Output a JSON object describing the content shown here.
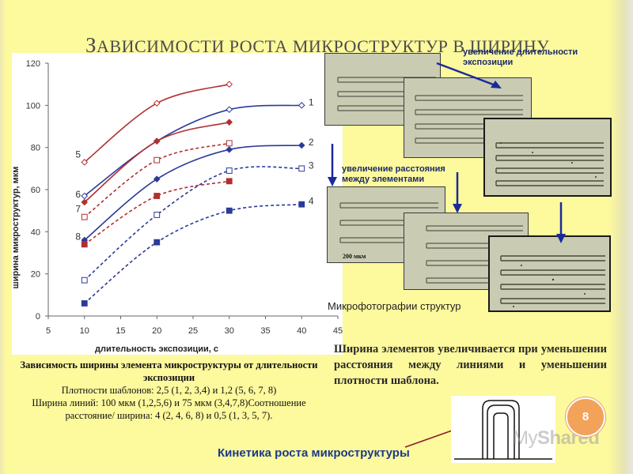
{
  "slide": {
    "title_cap": "З",
    "title_rest": "АВИСИМОСТИ РОСТА МИКРОСТРУКТУР В ШИРИНУ",
    "page_number": "8"
  },
  "chart_data": {
    "type": "line",
    "title": "",
    "xlabel": "длительность экспозиции, с",
    "ylabel": "ширина микроструктур, мкм",
    "xlim": [
      5,
      45
    ],
    "ylim": [
      0,
      120
    ],
    "xticks": [
      5,
      10,
      15,
      20,
      25,
      30,
      35,
      40,
      45
    ],
    "yticks": [
      0,
      20,
      40,
      60,
      80,
      100,
      120
    ],
    "grid": false,
    "series": [
      {
        "name": "1",
        "color": "#2b3a9a",
        "dash": false,
        "marker": "diamond-open",
        "x": [
          10,
          20,
          30,
          40
        ],
        "y": [
          57,
          83,
          98,
          100
        ]
      },
      {
        "name": "2",
        "color": "#2b3a9a",
        "dash": false,
        "marker": "diamond-filled",
        "x": [
          10,
          20,
          30,
          40
        ],
        "y": [
          36,
          65,
          79,
          81
        ]
      },
      {
        "name": "3",
        "color": "#2b3a9a",
        "dash": true,
        "marker": "square-open",
        "x": [
          10,
          20,
          30,
          40
        ],
        "y": [
          17,
          48,
          69,
          70
        ]
      },
      {
        "name": "4",
        "color": "#2b3a9a",
        "dash": true,
        "marker": "square-filled",
        "x": [
          10,
          20,
          30,
          40
        ],
        "y": [
          6,
          35,
          50,
          53
        ]
      },
      {
        "name": "5",
        "color": "#b03030",
        "dash": false,
        "marker": "diamond-open",
        "x": [
          10,
          20,
          30
        ],
        "y": [
          73,
          101,
          110
        ]
      },
      {
        "name": "6",
        "color": "#b03030",
        "dash": false,
        "marker": "diamond-filled",
        "x": [
          10,
          20,
          30
        ],
        "y": [
          54,
          83,
          92
        ]
      },
      {
        "name": "7",
        "color": "#b03030",
        "dash": true,
        "marker": "square-open",
        "x": [
          10,
          20,
          30
        ],
        "y": [
          47,
          74,
          82
        ]
      },
      {
        "name": "8",
        "color": "#b03030",
        "dash": true,
        "marker": "square-filled",
        "x": [
          10,
          20,
          30
        ],
        "y": [
          34,
          57,
          64
        ]
      }
    ]
  },
  "caption": {
    "line1": "Зависимость ширины элемента микроструктуры от длительности экспозиции",
    "line2": "Плотности шаблонов: 2,5 (1, 2, 3,4) и 1,2 (5, 6, 7, 8)",
    "line3": "Ширина линий: 100 мкм (1,2,5,6) и 75 мкм (3,4,7,8)Соотношение расстояние/ ширина: 4 (2, 4, 6, 8) и 0,5 (1, 3, 5, 7)."
  },
  "photos": {
    "label_top": "увеличение длительности\nэкспозиции",
    "label_middle": "увеличение расстояния\nмежду элементами",
    "scale": "200 мкм",
    "caption": "Микрофотографии структур"
  },
  "note": {
    "text": "Ширина элементов увеличивается при уменьшении расстояния между линиями и уменьшении плотности шаблона."
  },
  "kinetics": {
    "label": "Кинетика роста микроструктуры"
  },
  "watermark": {
    "brand_light": "My",
    "brand_bold": "Shared"
  },
  "colors": {
    "background": "#fdf99d",
    "accent_blue": "#2b3a9a",
    "accent_red": "#b03030",
    "badge": "#f3a25a"
  }
}
